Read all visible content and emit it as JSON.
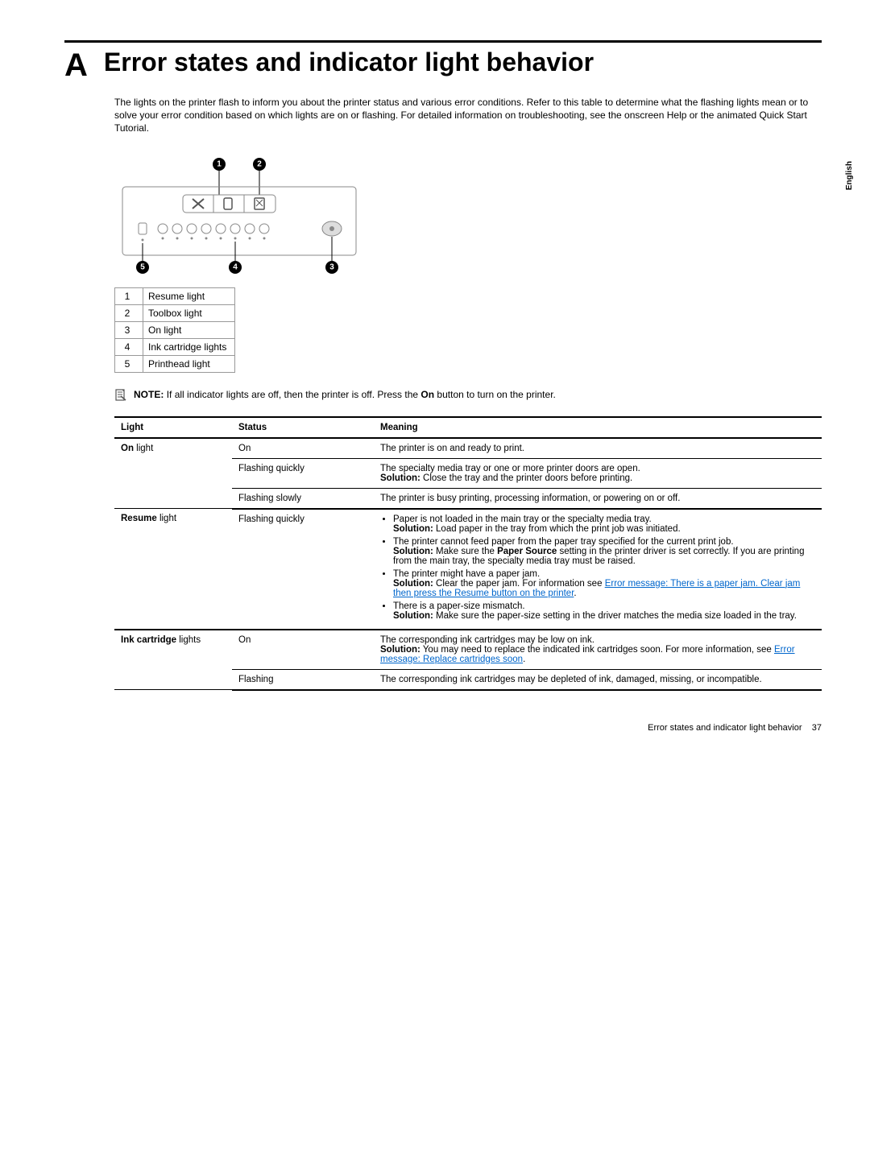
{
  "appendix_letter": "A",
  "title": "Error states and indicator light behavior",
  "intro": "The lights on the printer flash to inform you about the printer status and various error conditions. Refer to this table to determine what the flashing lights mean or to solve your error condition based on which lights are on or flashing. For detailed information on troubleshooting, see the onscreen Help or the animated Quick Start Tutorial.",
  "side_tab": "English",
  "legend": [
    {
      "num": "1",
      "label": "Resume light"
    },
    {
      "num": "2",
      "label": "Toolbox light"
    },
    {
      "num": "3",
      "label": "On light"
    },
    {
      "num": "4",
      "label": "Ink cartridge lights"
    },
    {
      "num": "5",
      "label": "Printhead light"
    }
  ],
  "note_label": "NOTE:",
  "note_text": "If all indicator lights are off, then the printer is off. Press the ",
  "note_bold": "On",
  "note_text_after": " button to turn on the printer.",
  "table": {
    "headers": {
      "light": "Light",
      "status": "Status",
      "meaning": "Meaning"
    },
    "rows": [
      {
        "light_bold": "On",
        "light_rest": " light",
        "cells": [
          {
            "status": "On",
            "meaning_plain": "The printer is on and ready to print."
          },
          {
            "status": "Flashing quickly",
            "meaning_line1": "The specialty media tray or one or more printer doors are open.",
            "meaning_sol_label": "Solution:",
            "meaning_sol": " Close the tray and the printer doors before printing."
          },
          {
            "status": "Flashing slowly",
            "meaning_plain": "The printer is busy printing, processing information, or powering on or off."
          }
        ]
      },
      {
        "light_bold": "Resume",
        "light_rest": " light",
        "cells": [
          {
            "status": "Flashing quickly",
            "bullets": [
              {
                "text": "Paper is not loaded in the main tray or the specialty media tray.",
                "sol_label": "Solution:",
                "sol": " Load paper in the tray from which the print job was initiated."
              },
              {
                "text": "The printer cannot feed paper from the paper tray specified for the current print job.",
                "sol_label": "Solution:",
                "sol_pre": " Make sure the ",
                "sol_bold": "Paper Source",
                "sol_post": " setting in the printer driver is set correctly. If you are printing from the main tray, the specialty media tray must be raised."
              },
              {
                "text": "The printer might have a paper jam.",
                "sol_label": "Solution:",
                "sol": " Clear the paper jam. For information see ",
                "link": "Error message: There is a paper jam. Clear jam then press the Resume button on the printer",
                "sol_after": "."
              },
              {
                "text": "There is a paper-size mismatch.",
                "sol_label": "Solution:",
                "sol": " Make sure the paper-size setting in the driver matches the media size loaded in the tray."
              }
            ]
          }
        ]
      },
      {
        "light_bold": "Ink cartridge",
        "light_rest": " lights",
        "cells": [
          {
            "status": "On",
            "meaning_line1": "The corresponding ink cartridges may be low on ink.",
            "meaning_sol_label": "Solution:",
            "meaning_sol": " You may need to replace the indicated ink cartridges soon. For more information, see ",
            "link": "Error message: Replace cartridges soon",
            "sol_after": "."
          },
          {
            "status": "Flashing",
            "meaning_plain": "The corresponding ink cartridges may be depleted of ink, damaged, missing, or incompatible."
          }
        ]
      }
    ]
  },
  "footer_text": "Error states and indicator light behavior",
  "footer_page": "37"
}
